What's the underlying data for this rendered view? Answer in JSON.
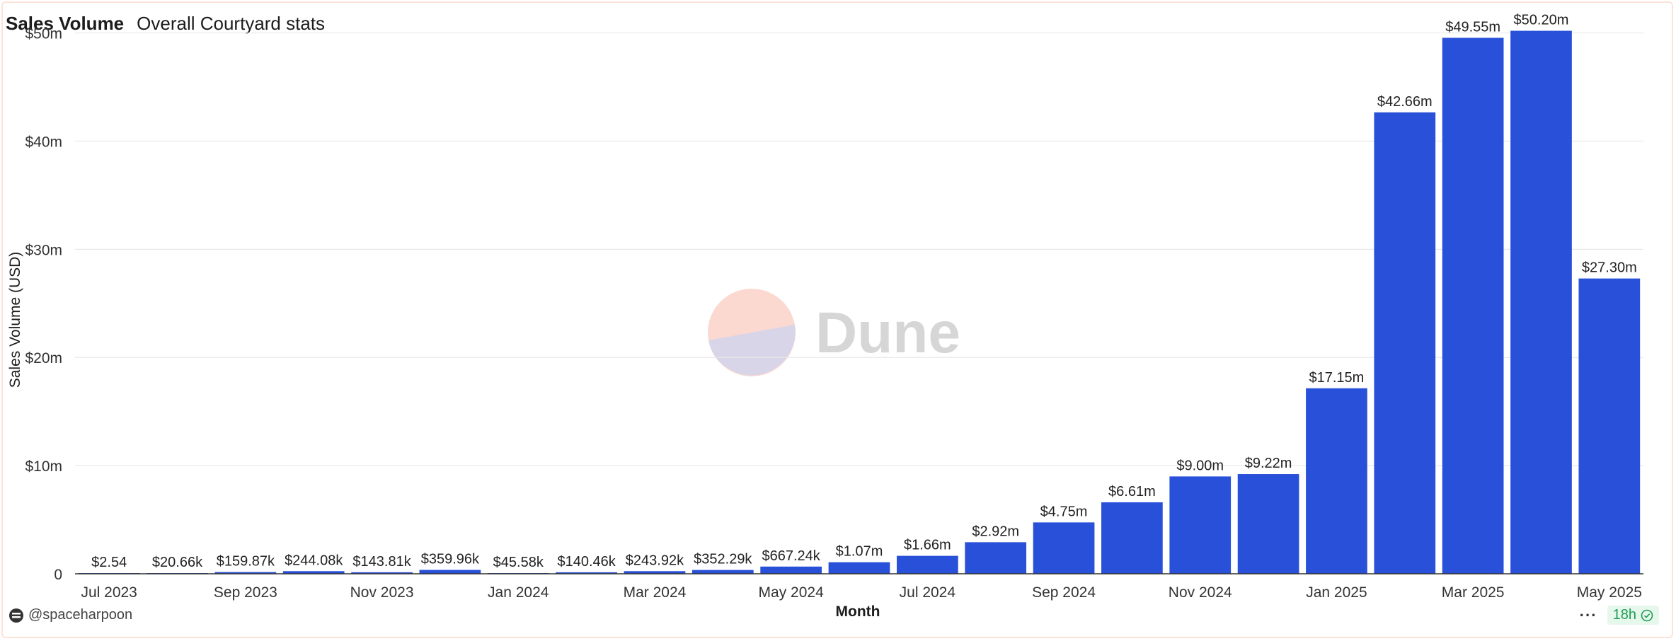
{
  "header": {
    "title": "Sales Volume",
    "subtitle": "Overall Courtyard stats"
  },
  "watermark": {
    "text": "Dune"
  },
  "footer": {
    "user": "@spaceharpoon",
    "more": "···",
    "age": "18h"
  },
  "colors": {
    "bar": "#2950d8",
    "grid": "#e8e8e8",
    "text": "#333333",
    "axis": "#333333"
  },
  "icons": {
    "user": "dune-user-icon",
    "age_status": "check-circle-icon"
  },
  "chart_data": {
    "type": "bar",
    "xlabel": "Month",
    "ylabel": "Sales Volume (USD)",
    "ylim": [
      0,
      52000000
    ],
    "y_ticks": [
      {
        "value": 0,
        "label": "0"
      },
      {
        "value": 10000000,
        "label": "$10m"
      },
      {
        "value": 20000000,
        "label": "$20m"
      },
      {
        "value": 30000000,
        "label": "$30m"
      },
      {
        "value": 40000000,
        "label": "$40m"
      },
      {
        "value": 50000000,
        "label": "$50m"
      }
    ],
    "grid": true,
    "categories": [
      "Jul 2023",
      "Aug 2023",
      "Sep 2023",
      "Oct 2023",
      "Nov 2023",
      "Dec 2023",
      "Jan 2024",
      "Feb 2024",
      "Mar 2024",
      "Apr 2024",
      "May 2024",
      "Jun 2024",
      "Jul 2024",
      "Aug 2024",
      "Sep 2024",
      "Oct 2024",
      "Nov 2024",
      "Dec 2024",
      "Jan 2025",
      "Feb 2025",
      "Mar 2025",
      "Apr 2025",
      "May 2025"
    ],
    "x_tick_labels": [
      "Jul 2023",
      "Sep 2023",
      "Nov 2023",
      "Jan 2024",
      "Mar 2024",
      "May 2024",
      "Jul 2024",
      "Sep 2024",
      "Nov 2024",
      "Jan 2025",
      "Mar 2025",
      "May 2025"
    ],
    "values": [
      2.54,
      20660,
      159870,
      244080,
      143810,
      359960,
      45580,
      140460,
      243920,
      352290,
      667240,
      1070000,
      1660000,
      2920000,
      4750000,
      6610000,
      9000000,
      9220000,
      17150000,
      42660000,
      49550000,
      50200000,
      27300000
    ],
    "data_labels": [
      "$2.54",
      "$20.66k",
      "$159.87k",
      "$244.08k",
      "$143.81k",
      "$359.96k",
      "$45.58k",
      "$140.46k",
      "$243.92k",
      "$352.29k",
      "$667.24k",
      "$1.07m",
      "$1.66m",
      "$2.92m",
      "$4.75m",
      "$6.61m",
      "$9.00m",
      "$9.22m",
      "$17.15m",
      "$42.66m",
      "$49.55m",
      "$50.20m",
      "$27.30m"
    ]
  }
}
